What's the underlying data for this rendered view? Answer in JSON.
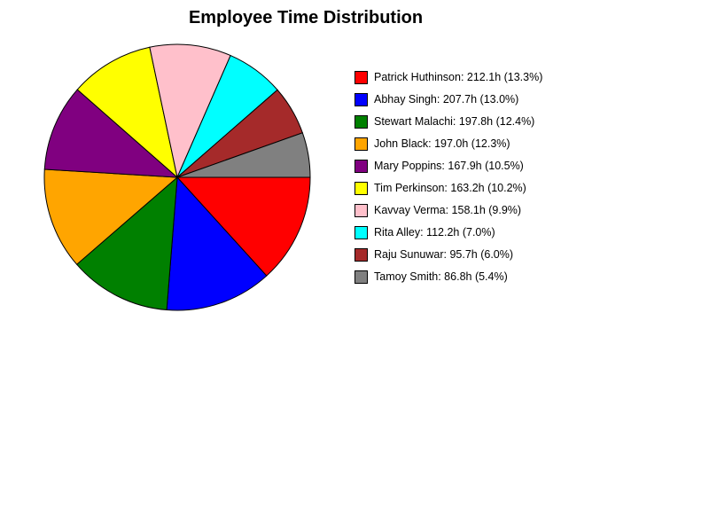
{
  "chart_data": {
    "type": "pie",
    "title": "Employee Time Distribution",
    "unit": "h",
    "legend_position": "right",
    "slices": [
      {
        "name": "Patrick Huthinson",
        "value": 212.1,
        "percent": 13.3,
        "color": "#ff0000",
        "label": "Patrick Huthinson: 212.1h (13.3%)"
      },
      {
        "name": "Abhay Singh",
        "value": 207.7,
        "percent": 13.0,
        "color": "#0000ff",
        "label": "Abhay Singh: 207.7h (13.0%)"
      },
      {
        "name": "Stewart Malachi",
        "value": 197.8,
        "percent": 12.4,
        "color": "#008000",
        "label": "Stewart Malachi: 197.8h (12.4%)"
      },
      {
        "name": "John Black",
        "value": 197.0,
        "percent": 12.3,
        "color": "#ffa500",
        "label": "John Black: 197.0h (12.3%)"
      },
      {
        "name": "Mary Poppins",
        "value": 167.9,
        "percent": 10.5,
        "color": "#800080",
        "label": "Mary Poppins: 167.9h (10.5%)"
      },
      {
        "name": "Tim Perkinson",
        "value": 163.2,
        "percent": 10.2,
        "color": "#ffff00",
        "label": "Tim Perkinson: 163.2h (10.2%)"
      },
      {
        "name": "Kavvay Verma",
        "value": 158.1,
        "percent": 9.9,
        "color": "#ffc0cb",
        "label": "Kavvay Verma: 158.1h (9.9%)"
      },
      {
        "name": "Rita Alley",
        "value": 112.2,
        "percent": 7.0,
        "color": "#00ffff",
        "label": "Rita Alley: 112.2h (7.0%)"
      },
      {
        "name": "Raju Sunuwar",
        "value": 95.7,
        "percent": 6.0,
        "color": "#a52a2a",
        "label": "Raju Sunuwar: 95.7h (6.0%)"
      },
      {
        "name": "Tamoy Smith",
        "value": 86.8,
        "percent": 5.4,
        "color": "#808080",
        "label": "Tamoy Smith: 86.8h (5.4%)"
      }
    ]
  }
}
